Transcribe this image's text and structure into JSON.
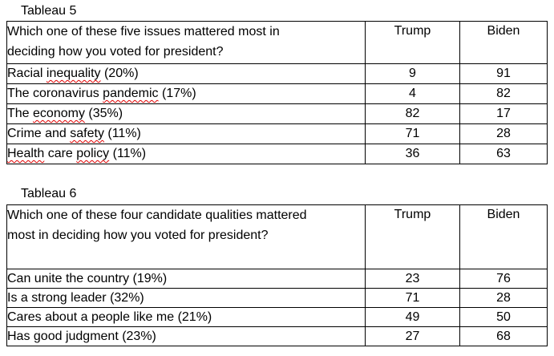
{
  "colors": {
    "border": "#000000",
    "text": "#000000",
    "squiggle": "#e00000",
    "background": "#ffffff"
  },
  "tables": [
    {
      "caption": "Tableau 5",
      "question_lines": [
        "Which one of these five issues mattered most in",
        "deciding how you voted for president?"
      ],
      "columns": [
        "Trump",
        "Biden"
      ],
      "rows": [
        {
          "label_parts": [
            {
              "text": "Racial ",
              "misspelled": false
            },
            {
              "text": "inequality",
              "misspelled": true
            },
            {
              "text": " (20%)",
              "misspelled": false
            }
          ],
          "values": [
            "9",
            "91"
          ]
        },
        {
          "label_parts": [
            {
              "text": "The coronavirus ",
              "misspelled": false
            },
            {
              "text": "pandemic",
              "misspelled": true
            },
            {
              "text": " (17%)",
              "misspelled": false
            }
          ],
          "values": [
            "4",
            "82"
          ]
        },
        {
          "label_parts": [
            {
              "text": "The ",
              "misspelled": false
            },
            {
              "text": "economy",
              "misspelled": true
            },
            {
              "text": " (35%)",
              "misspelled": false
            }
          ],
          "values": [
            "82",
            "17"
          ]
        },
        {
          "label_parts": [
            {
              "text": "Crime and ",
              "misspelled": false
            },
            {
              "text": "safety",
              "misspelled": true
            },
            {
              "text": " (11%)",
              "misspelled": false
            }
          ],
          "values": [
            "71",
            "28"
          ]
        },
        {
          "label_parts": [
            {
              "text": "Health",
              "misspelled": true
            },
            {
              "text": " care ",
              "misspelled": false
            },
            {
              "text": "policy",
              "misspelled": true
            },
            {
              "text": " (11%)",
              "misspelled": false
            }
          ],
          "values": [
            "36",
            "63"
          ]
        }
      ]
    },
    {
      "caption": "Tableau 6",
      "question_lines": [
        "Which one of these four candidate qualities mattered",
        "most in deciding how you voted for president?"
      ],
      "columns": [
        "Trump",
        "Biden"
      ],
      "rows": [
        {
          "label_parts": [
            {
              "text": "Can unite the country (19%)",
              "misspelled": false
            }
          ],
          "values": [
            "23",
            "76"
          ]
        },
        {
          "label_parts": [
            {
              "text": "Is a strong leader (32%)",
              "misspelled": false
            }
          ],
          "values": [
            "71",
            "28"
          ]
        },
        {
          "label_parts": [
            {
              "text": "Cares about a people like me (21%)",
              "misspelled": false
            }
          ],
          "values": [
            "49",
            "50"
          ]
        },
        {
          "label_parts": [
            {
              "text": "Has good judgment (23%)",
              "misspelled": false
            }
          ],
          "values": [
            "27",
            "68"
          ]
        }
      ]
    }
  ]
}
